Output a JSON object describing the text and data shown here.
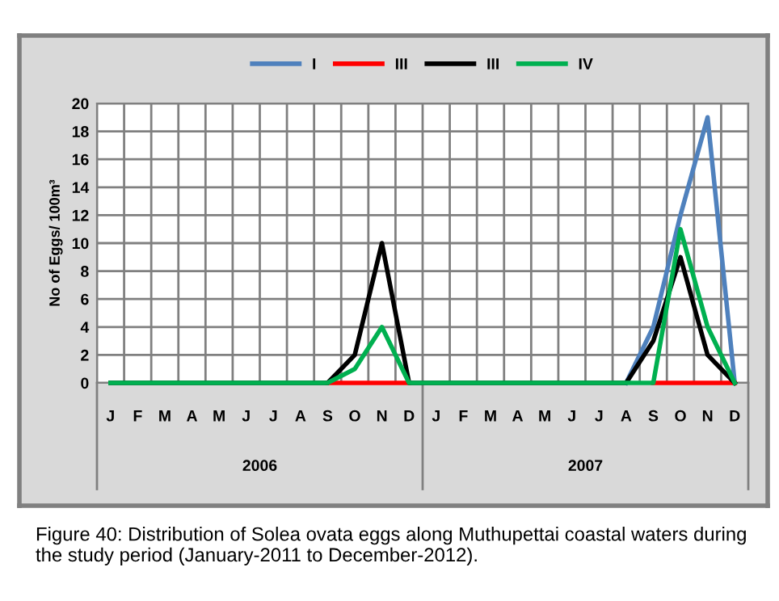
{
  "chart_data": {
    "type": "line",
    "categories": [
      "J",
      "F",
      "M",
      "A",
      "M",
      "J",
      "J",
      "A",
      "S",
      "O",
      "N",
      "D",
      "J",
      "F",
      "M",
      "A",
      "M",
      "J",
      "J",
      "A",
      "S",
      "O",
      "N",
      "D"
    ],
    "series": [
      {
        "name": "I",
        "color": "#4f81bd",
        "values": [
          null,
          null,
          null,
          null,
          null,
          null,
          null,
          null,
          null,
          null,
          null,
          null,
          null,
          null,
          null,
          null,
          null,
          null,
          null,
          0,
          4,
          12,
          19,
          0
        ]
      },
      {
        "name": "III",
        "color": "#ff0000",
        "values": [
          null,
          null,
          null,
          null,
          null,
          null,
          null,
          null,
          0,
          0,
          0,
          0,
          null,
          null,
          null,
          null,
          null,
          null,
          null,
          null,
          0,
          0,
          0,
          0
        ]
      },
      {
        "name": "III",
        "color": "#000000",
        "values": [
          0,
          0,
          0,
          0,
          0,
          0,
          0,
          0,
          0,
          2,
          10,
          0,
          0,
          0,
          0,
          0,
          0,
          0,
          0,
          0,
          3,
          9,
          2,
          0
        ]
      },
      {
        "name": "IV",
        "color": "#00b050",
        "values": [
          0,
          0,
          0,
          0,
          0,
          0,
          0,
          0,
          0,
          1,
          4,
          0,
          0,
          0,
          0,
          0,
          0,
          0,
          0,
          0,
          0,
          11,
          4,
          0
        ]
      }
    ],
    "ylabel": "No of Eggs/ 100m³",
    "ylim": [
      0,
      20
    ],
    "yticks": [
      0,
      2,
      4,
      6,
      8,
      10,
      12,
      14,
      16,
      18,
      20
    ],
    "grid": true,
    "legend": "top",
    "marker": "none",
    "line_style": "solid",
    "annotations": [
      "2006",
      "2007",
      "Figure 40: Distribution of Solea ovata eggs along Muthupettai coastal waters during the study period (January-2011 to December-2012)."
    ]
  }
}
